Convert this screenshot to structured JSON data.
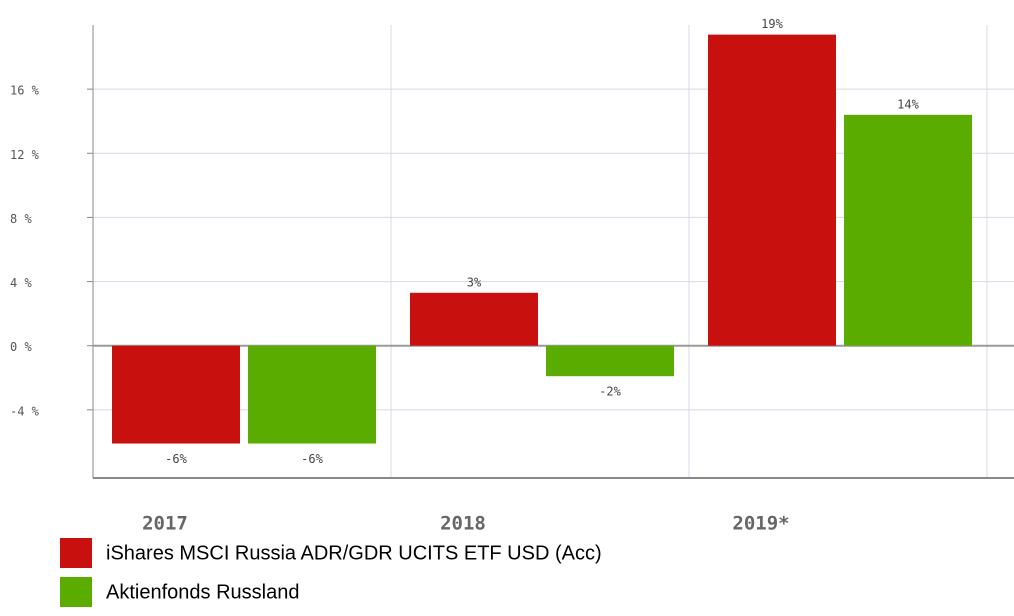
{
  "chart_data": {
    "type": "bar",
    "categories": [
      "2017",
      "2018",
      "2019*"
    ],
    "series": [
      {
        "name": "iShares MSCI Russia ADR/GDR UCITS ETF USD (Acc)",
        "color": "#c8100e",
        "values": [
          -6.1,
          3.3,
          19.4
        ],
        "value_labels": [
          "-6%",
          "3%",
          "19%"
        ]
      },
      {
        "name": "Aktienfonds Russland",
        "color": "#5aad00",
        "values": [
          -6.1,
          -1.9,
          14.4
        ],
        "value_labels": [
          "-6%",
          "-2%",
          "14%"
        ]
      }
    ],
    "ylim": [
      -8.25,
      20
    ],
    "yticks": [
      {
        "value": -4,
        "label": "-4 %"
      },
      {
        "value": 0,
        "label": "0 %"
      },
      {
        "value": 4,
        "label": "4 %"
      },
      {
        "value": 8,
        "label": "8 %"
      },
      {
        "value": 12,
        "label": "12 %"
      },
      {
        "value": 16,
        "label": "16 %"
      }
    ],
    "grid": true
  }
}
